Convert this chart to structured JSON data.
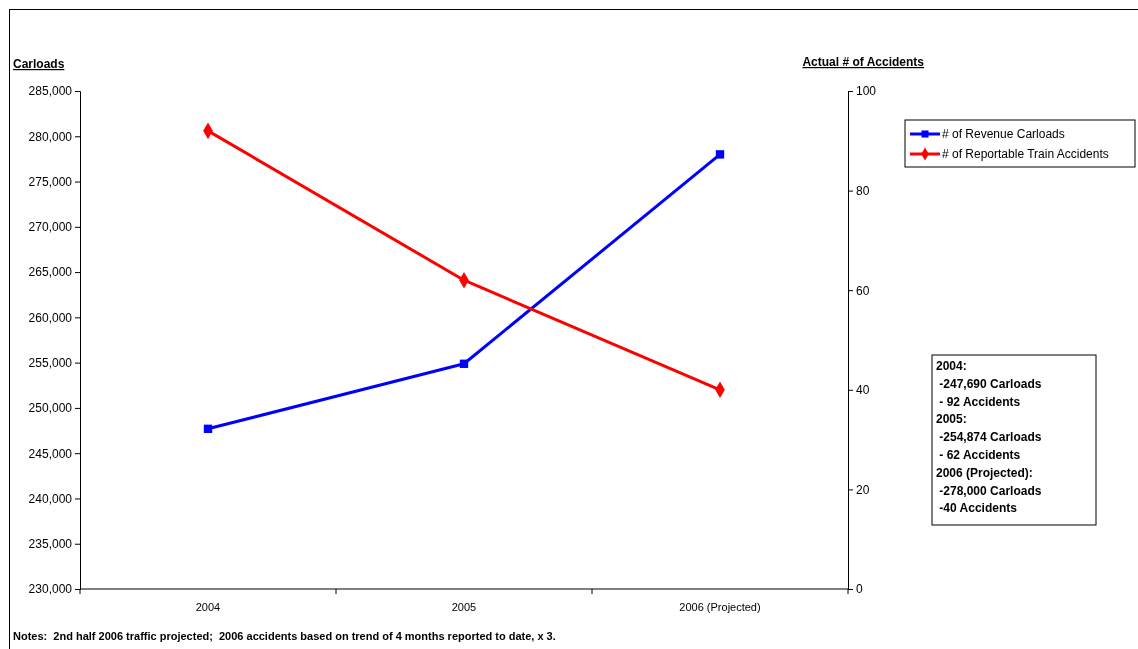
{
  "chart_data": {
    "type": "line",
    "ylabel": "Carloads",
    "y2label": "Actual # of Accidents",
    "categories": [
      "2004",
      "2005",
      "2006 (Projected)"
    ],
    "series": [
      {
        "name": "# of Revenue Carloads",
        "color": "#0000ff",
        "marker": "square",
        "values": [
          247690,
          254874,
          278000
        ]
      },
      {
        "name": "# of Reportable Train Accidents",
        "color": "#ff0000",
        "marker": "diamond",
        "axis": "y2",
        "values": [
          92,
          62,
          40
        ]
      }
    ],
    "ylim": [
      230000,
      285000
    ],
    "yticks": [
      {
        "value": 230000,
        "label": "230,000"
      },
      {
        "value": 235000,
        "label": "235,000"
      },
      {
        "value": 240000,
        "label": "240,000"
      },
      {
        "value": 245000,
        "label": "245,000"
      },
      {
        "value": 250000,
        "label": "250,000"
      },
      {
        "value": 255000,
        "label": "255,000"
      },
      {
        "value": 260000,
        "label": "260,000"
      },
      {
        "value": 265000,
        "label": "265,000"
      },
      {
        "value": 270000,
        "label": "270,000"
      },
      {
        "value": 275000,
        "label": "275,000"
      },
      {
        "value": 280000,
        "label": "280,000"
      },
      {
        "value": 285000,
        "label": "285,000"
      }
    ],
    "y2lim": [
      0,
      100
    ],
    "y2ticks": [
      0,
      20,
      40,
      60,
      80,
      100
    ],
    "legend": "top right",
    "grid": false,
    "annotations": [
      "2004:\n -247,690 Carloads\n - 92 Accidents\n2005:\n -254,874 Carloads\n - 62 Accidents\n2006 (Projected):\n -278,000 Carloads\n -40 Accidents",
      "Notes:  2nd half 2006 traffic projected;  2006 accidents based on trend of 4 months reported to date, x 3."
    ]
  }
}
